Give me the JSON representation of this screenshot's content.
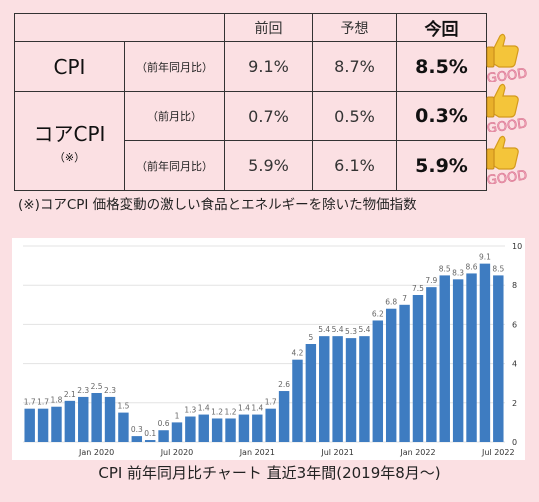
{
  "table": {
    "headers": [
      "前回",
      "予想",
      "今回"
    ],
    "rows": [
      {
        "category": "CPI",
        "sub": "（前年同月比）",
        "prev": "9.1%",
        "forecast": "8.7%",
        "current": "8.5%"
      },
      {
        "category": "コアCPI",
        "category_note": "（※）",
        "sub": "（前月比）",
        "prev": "0.7%",
        "forecast": "0.5%",
        "current": "0.3%"
      },
      {
        "category": "コアCPI",
        "sub": "（前年同月比）",
        "prev": "5.9%",
        "forecast": "6.1%",
        "current": "5.9%"
      }
    ]
  },
  "badges": {
    "text": "GOOD",
    "icon": "thumbs-up-icon"
  },
  "footnote": "(※)コアCPI  価格変動の激しい食品とエネルギーを除いた物価指数",
  "chart_data": {
    "type": "bar",
    "categories": [
      "2019-08",
      "2019-09",
      "2019-10",
      "2019-11",
      "2019-12",
      "2020-01",
      "2020-02",
      "2020-03",
      "2020-04",
      "2020-05",
      "2020-06",
      "2020-07",
      "2020-08",
      "2020-09",
      "2020-10",
      "2020-11",
      "2020-12",
      "2021-01",
      "2021-02",
      "2021-03",
      "2021-04",
      "2021-05",
      "2021-06",
      "2021-07",
      "2021-08",
      "2021-09",
      "2021-10",
      "2021-11",
      "2021-12",
      "2022-01",
      "2022-02",
      "2022-03",
      "2022-04",
      "2022-05",
      "2022-06",
      "2022-07"
    ],
    "values": [
      1.7,
      1.7,
      1.8,
      2.1,
      2.3,
      2.5,
      2.3,
      1.5,
      0.3,
      0.1,
      0.6,
      1,
      1.3,
      1.4,
      1.2,
      1.2,
      1.4,
      1.4,
      1.7,
      2.6,
      4.2,
      5,
      5.4,
      5.4,
      5.3,
      5.4,
      6.2,
      6.8,
      7,
      7.5,
      7.9,
      8.5,
      8.3,
      8.6,
      9.1,
      8.5
    ],
    "value_labels": [
      "1.7",
      "1.7",
      "1.8",
      "2.1",
      "2.3",
      "2.5",
      "2.3",
      "1.5",
      "0.3",
      "0.1",
      "0.6",
      "1",
      "1.3",
      "1.4",
      "1.2",
      "1.2",
      "1.4",
      "1.4",
      "1.7",
      "2.6",
      "4.2",
      "5",
      "5.4",
      "5.4",
      "5.3",
      "5.4",
      "6.2",
      "6.8",
      "7",
      "7.5",
      "7.9",
      "8.5",
      "8.3",
      "8.6",
      "9.1",
      "8.5"
    ],
    "x_ticks": [
      {
        "label": "Jan 2020",
        "index": 5
      },
      {
        "label": "Jul 2020",
        "index": 11
      },
      {
        "label": "Jan 2021",
        "index": 17
      },
      {
        "label": "Jul 2021",
        "index": 23
      },
      {
        "label": "Jan 2022",
        "index": 29
      },
      {
        "label": "Jul 2022",
        "index": 35
      }
    ],
    "y_ticks": [
      "0",
      "2",
      "4",
      "6",
      "8",
      "10"
    ],
    "ylim": [
      0,
      10
    ],
    "grid": true,
    "bar_color": "#3e7cc1",
    "title": "CPI  前年同月比チャート  直近3年間(2019年8月～)"
  }
}
